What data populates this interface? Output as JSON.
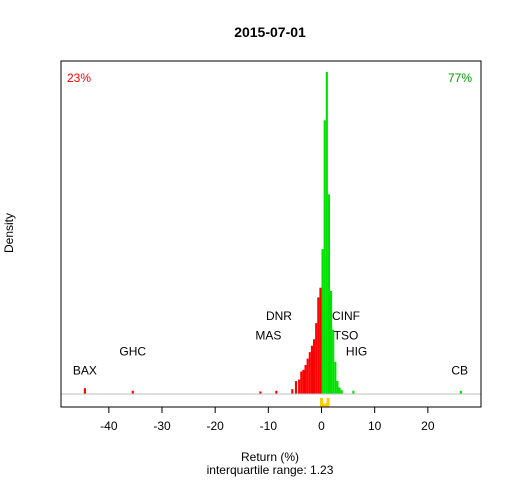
{
  "chart_data": {
    "type": "histogram",
    "title": "2015-07-01",
    "xlabel": "Return (%)",
    "ylabel": "Density",
    "subtitle": "interquartile range: 1.23",
    "xlim": [
      -49,
      30
    ],
    "x_ticks": [
      -40,
      -30,
      -20,
      -10,
      0,
      10,
      20
    ],
    "negative_share": "23%",
    "positive_share": "77%",
    "colors": {
      "negative": "#ff0000",
      "positive": "#00e000",
      "iqr_marker": "#ffcc00",
      "baseline": "#bebebe"
    },
    "bins": [
      {
        "x": -44.5,
        "y": 0.018
      },
      {
        "x": -35.5,
        "y": 0.01
      },
      {
        "x": -11.5,
        "y": 0.008
      },
      {
        "x": -8.5,
        "y": 0.01
      },
      {
        "x": -5.5,
        "y": 0.015
      },
      {
        "x": -4.8,
        "y": 0.04
      },
      {
        "x": -4.2,
        "y": 0.045
      },
      {
        "x": -3.8,
        "y": 0.07
      },
      {
        "x": -3.4,
        "y": 0.075
      },
      {
        "x": -3.0,
        "y": 0.09
      },
      {
        "x": -2.6,
        "y": 0.11
      },
      {
        "x": -2.2,
        "y": 0.13
      },
      {
        "x": -1.8,
        "y": 0.15
      },
      {
        "x": -1.4,
        "y": 0.17
      },
      {
        "x": -1.0,
        "y": 0.22
      },
      {
        "x": -0.6,
        "y": 0.3
      },
      {
        "x": -0.2,
        "y": 0.33
      },
      {
        "x": 0.2,
        "y": 0.45
      },
      {
        "x": 0.6,
        "y": 0.85
      },
      {
        "x": 1.0,
        "y": 1.0
      },
      {
        "x": 1.4,
        "y": 0.62
      },
      {
        "x": 1.8,
        "y": 0.32
      },
      {
        "x": 2.2,
        "y": 0.2
      },
      {
        "x": 2.6,
        "y": 0.1
      },
      {
        "x": 3.0,
        "y": 0.04
      },
      {
        "x": 3.4,
        "y": 0.02
      },
      {
        "x": 3.8,
        "y": 0.012
      },
      {
        "x": 6.0,
        "y": 0.01
      },
      {
        "x": 26.2,
        "y": 0.01
      }
    ],
    "bin_width": 0.4,
    "annotations": [
      {
        "label": "BAX",
        "x": -44.5,
        "y": 0.06
      },
      {
        "label": "GHC",
        "x": -35.5,
        "y": 0.12
      },
      {
        "label": "DNR",
        "x": -8.0,
        "y": 0.23
      },
      {
        "label": "MAS",
        "x": -10.0,
        "y": 0.17
      },
      {
        "label": "CINF",
        "x": 4.6,
        "y": 0.23
      },
      {
        "label": "TSO",
        "x": 4.6,
        "y": 0.17
      },
      {
        "label": "HIG",
        "x": 6.6,
        "y": 0.12
      },
      {
        "label": "CB",
        "x": 26.0,
        "y": 0.06
      }
    ],
    "iqr_marker": [
      0,
      1.23
    ]
  }
}
